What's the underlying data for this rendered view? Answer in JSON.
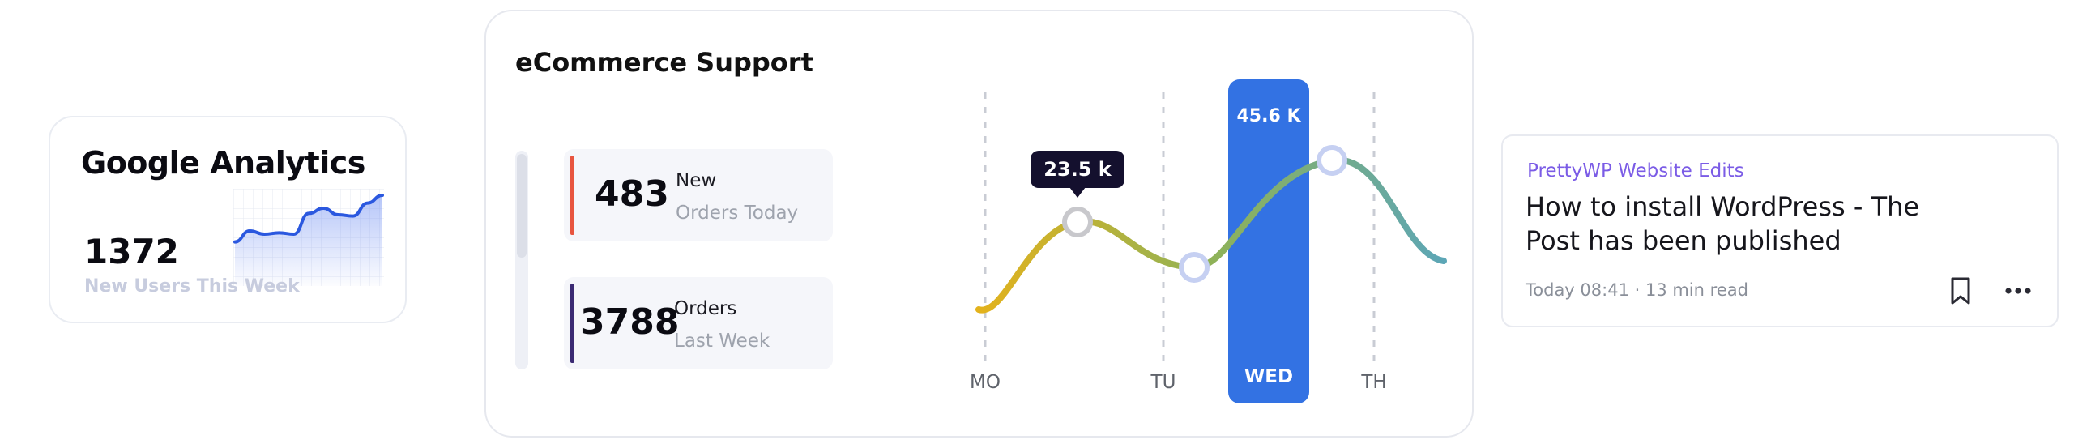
{
  "google_analytics": {
    "title": "Google Analytics",
    "value": "1372",
    "label": "New Users This Week",
    "sparkline": [
      0.72,
      0.55,
      0.6,
      0.58,
      0.6,
      0.28,
      0.2,
      0.3,
      0.32,
      0.12,
      0.0
    ]
  },
  "ecommerce": {
    "title": "eCommerce Support",
    "stats": [
      {
        "value": "483",
        "label_top": "New",
        "label_bottom": "Orders Today",
        "accent": "#e8553f"
      },
      {
        "value": "3788",
        "label_top": "Orders",
        "label_bottom": "Last Week",
        "accent": "#3b2a73"
      }
    ],
    "chart_data": {
      "type": "line",
      "categories": [
        "MO",
        "TU",
        "WED",
        "TH"
      ],
      "highlight_category": "WED",
      "highlight_label": "45.6 K",
      "tooltip_label": "23.5 k",
      "colors": {
        "highlight": "#3372e3",
        "tooltip_bg": "#14102e",
        "line_start": "#e3b21c",
        "line_mid": "#8fb257",
        "line_end": "#5ca6b6"
      }
    }
  },
  "blog": {
    "category": "PrettyWP Website Edits",
    "title": "How to install WordPress - The Post has been published",
    "meta": "Today 08:41 · 13 min read",
    "bookmark_icon": "bookmark-icon",
    "more_icon": "more-icon"
  }
}
